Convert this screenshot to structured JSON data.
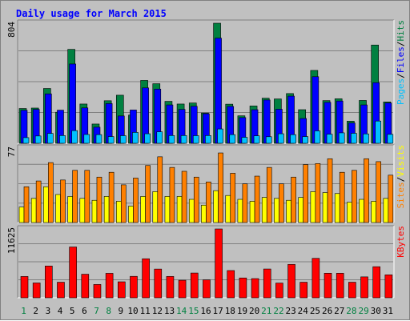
{
  "chart_data": {
    "type": "bar",
    "title": "Daily usage for March 2015",
    "categories": [
      "1",
      "2",
      "3",
      "4",
      "5",
      "6",
      "7",
      "8",
      "9",
      "10",
      "11",
      "12",
      "13",
      "14",
      "15",
      "16",
      "17",
      "18",
      "19",
      "20",
      "21",
      "22",
      "23",
      "24",
      "25",
      "26",
      "27",
      "28",
      "29",
      "30",
      "31"
    ],
    "weekend_days": [
      "1",
      "7",
      "8",
      "14",
      "15",
      "21",
      "22",
      "28",
      "29"
    ],
    "colors": {
      "title": "#0000ff",
      "weekday": "#000000",
      "weekend": "#008040",
      "background": "#c0c0c0",
      "plot": "#c0c0c0",
      "gridline": "#808080",
      "hits": "#008040",
      "files": "#0000ff",
      "pages": "#00c0ff",
      "visits": "#ffff00",
      "sites": "#ff8000",
      "kbytes": "#ff0000",
      "label_separator": "#000000"
    },
    "panels": [
      {
        "name": "hits_files_pages",
        "ymax_label": "804",
        "ylim": [
          0,
          804
        ],
        "labels": [
          "Pages",
          "Files",
          "Hits"
        ],
        "label_colors": [
          "#00c0ff",
          "#0000ff",
          "#008040"
        ],
        "series": [
          {
            "name": "Hits",
            "values": [
              233,
              236,
              367,
              208,
              629,
              263,
              129,
              285,
              322,
              189,
              421,
              399,
              281,
              263,
              270,
              203,
              804,
              262,
              184,
              250,
              302,
              297,
              333,
              225,
              488,
              286,
              298,
              148,
              287,
              658,
              277
            ]
          },
          {
            "name": "Files",
            "values": [
              221,
              227,
              331,
              222,
              531,
              237,
              108,
              266,
              183,
              223,
              371,
              363,
              257,
              227,
              248,
              198,
              704,
              247,
              172,
              225,
              290,
              228,
              316,
              166,
              446,
              274,
              283,
              136,
              257,
              406,
              270
            ]
          },
          {
            "name": "Pages",
            "values": [
              38,
              49,
              66,
              52,
              85,
              59,
              58,
              45,
              51,
              73,
              64,
              77,
              52,
              52,
              51,
              52,
              96,
              58,
              40,
              50,
              44,
              64,
              58,
              45,
              83,
              61,
              70,
              67,
              63,
              149,
              60
            ]
          }
        ]
      },
      {
        "name": "sites_visits",
        "ymax_label": "77",
        "ylim": [
          0,
          77
        ],
        "labels": [
          "Sites",
          "Visits"
        ],
        "label_colors": [
          "#ff8000",
          "#ffff00"
        ],
        "series": [
          {
            "name": "Visits",
            "values": [
              16,
              25,
              37,
              29,
              27,
              25,
              23,
              27,
              22,
              17,
              27,
              32,
              27,
              27,
              24,
              18,
              33,
              28,
              24,
              22,
              26,
              25,
              23,
              26,
              32,
              31,
              30,
              21,
              24,
              22,
              25
            ]
          },
          {
            "name": "Sites",
            "values": [
              37,
              43,
              62,
              44,
              54,
              54,
              47,
              52,
              39,
              46,
              59,
              68,
              57,
              53,
              47,
              42,
              72,
              51,
              40,
              48,
              57,
              40,
              47,
              60,
              61,
              66,
              52,
              54,
              66,
              63,
              49
            ]
          }
        ]
      },
      {
        "name": "kbytes",
        "ymax_label": "11625",
        "ylim": [
          0,
          11625
        ],
        "labels": [
          "KBytes"
        ],
        "label_colors": [
          "#ff0000"
        ],
        "series": [
          {
            "name": "KBytes",
            "values": [
              3600,
              2510,
              5370,
              2630,
              8580,
              3980,
              2250,
              4130,
              2700,
              3620,
              6590,
              4850,
              3610,
              2960,
              4180,
              3030,
              11625,
              4600,
              3350,
              3240,
              4860,
              2490,
              5640,
              2630,
              6660,
              4150,
              4140,
              2630,
              3530,
              5250,
              3880
            ]
          }
        ]
      }
    ]
  }
}
